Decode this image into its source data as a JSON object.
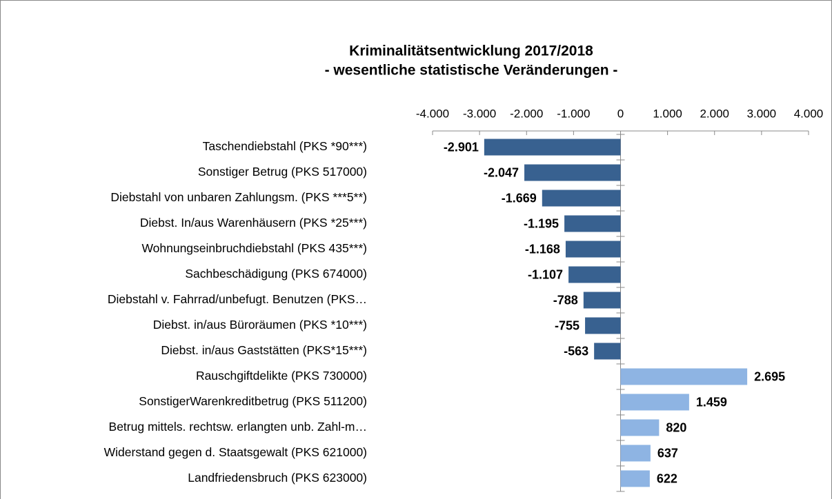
{
  "chart_data": {
    "type": "hbar",
    "title": "Kriminalitätsentwicklung 2017/2018",
    "subtitle": "- wesentliche statistische Veränderungen -",
    "categories": [
      "Taschendiebstahl (PKS *90***)",
      "Sonstiger Betrug (PKS 517000)",
      "Diebstahl von unbaren Zahlungsm. (PKS ***5**)",
      "Diebst. In/aus Warenhäusern (PKS *25***)",
      "Wohnungseinbruchdiebstahl (PKS 435***)",
      "Sachbeschädigung (PKS 674000)",
      "Diebstahl v. Fahrrad/unbefugt. Benutzen (PKS…",
      "Diebst. in/aus Büroräumen (PKS *10***)",
      "Diebst. in/aus Gaststätten (PKS*15***)",
      "Rauschgiftdelikte (PKS 730000)",
      "SonstigerWarenkreditbetrug (PKS 511200)",
      "Betrug mittels. rechtsw. erlangten unb. Zahl-m…",
      "Widerstand gegen d. Staatsgewalt (PKS 621000)",
      "Landfriedensbruch (PKS 623000)"
    ],
    "values": [
      -2901,
      -2047,
      -1669,
      -1195,
      -1168,
      -1107,
      -788,
      -755,
      -563,
      2695,
      1459,
      820,
      637,
      622
    ],
    "value_labels": [
      "-2.901",
      "-2.047",
      "-1.669",
      "-1.195",
      "-1.168",
      "-1.107",
      "-788",
      "-755",
      "-563",
      "2.695",
      "1.459",
      "820",
      "637",
      "622"
    ],
    "colors": [
      "#386190",
      "#386190",
      "#386190",
      "#386190",
      "#386190",
      "#386190",
      "#386190",
      "#386190",
      "#386190",
      "#8eb4e3",
      "#8eb4e3",
      "#8eb4e3",
      "#8eb4e3",
      "#8eb4e3"
    ],
    "xlim": [
      -4000,
      4000
    ],
    "xticks": [
      {
        "value": -4000,
        "label": "-4.000"
      },
      {
        "value": -3000,
        "label": "-3.000"
      },
      {
        "value": -2000,
        "label": "-2.000"
      },
      {
        "value": -1000,
        "label": "-1.000"
      },
      0,
      {
        "value": 1000,
        "label": "1.000"
      },
      {
        "value": 2000,
        "label": "2.000"
      },
      {
        "value": 3000,
        "label": "3.000"
      },
      {
        "value": 4000,
        "label": "4.000"
      }
    ]
  }
}
